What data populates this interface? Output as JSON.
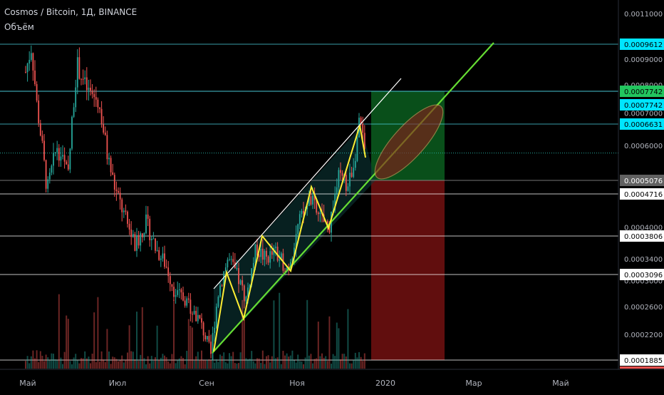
{
  "header": {
    "title": "Cosmos / Bitcoin, 1Д, BINANCE",
    "volume_label": "Объём"
  },
  "chart_data": {
    "type": "candlestick",
    "symbol": "Cosmos / Bitcoin",
    "interval": "1Д",
    "exchange": "BINANCE",
    "x_ticks": [
      "Май",
      "Июл",
      "Сен",
      "Ноя",
      "2020",
      "Мар",
      "Май"
    ],
    "y_ticks": [
      "0.0011000",
      "0.0009000",
      "0.0008000",
      "0.0007000",
      "0.0006000",
      "0.0004000",
      "0.0003400",
      "0.0003000",
      "0.0002600",
      "0.0002200"
    ],
    "y_tick_values": [
      0.0011,
      0.0009,
      0.0008,
      0.0007,
      0.0006,
      0.0004,
      0.00034,
      0.0003,
      0.00026,
      0.00022
    ],
    "horizontal_levels": [
      {
        "value": 0.0009612,
        "label": "0.0009612",
        "color": "#4dd0e1",
        "badge_bg": "#00e5ff",
        "badge_fg": "#000000"
      },
      {
        "value": 0.0007742,
        "label": "0.0007742",
        "color": "#4dd0e1",
        "badge_bg": "#22c55e",
        "badge_fg": "#000000"
      },
      {
        "value": 0.0007742,
        "label": "0.0007742",
        "color": "#4dd0e1",
        "badge_bg": "#00e5ff",
        "badge_fg": "#000000"
      },
      {
        "value": 0.0006631,
        "label": "0.0006631",
        "color": "#4dd0e1",
        "badge_bg": "#00e5ff",
        "badge_fg": "#000000"
      },
      {
        "value": 0.0005076,
        "label": "0.0005076",
        "color": "#9e9e9e",
        "badge_bg": "#616161",
        "badge_fg": "#ffffff"
      },
      {
        "value": 0.0004716,
        "label": "0.0004716",
        "color": "#ffffff",
        "badge_bg": "#ffffff",
        "badge_fg": "#000000"
      },
      {
        "value": 0.0003806,
        "label": "0.0003806",
        "color": "#ffffff",
        "badge_bg": "#ffffff",
        "badge_fg": "#000000"
      },
      {
        "value": 0.0003096,
        "label": "0.0003096",
        "color": "#ffffff",
        "badge_bg": "#ffffff",
        "badge_fg": "#000000"
      },
      {
        "value": 0.0001885,
        "label": "0.0001885",
        "color": "#ffffff",
        "badge_bg": "#ffffff",
        "badge_fg": "#000000"
      }
    ],
    "current_price": 0.00058,
    "trade_box": {
      "entry": 0.0005076,
      "target": 0.0007742,
      "stop": 0.0001885
    },
    "colors": {
      "up": "#26a69a",
      "down": "#ef5350",
      "channel": "#66dd33",
      "zigzag": "#ffee33",
      "ellipse": "#8b1a1a",
      "profit": "#0b5d1e",
      "loss": "#6b0f0f"
    },
    "grid": false,
    "legend": "top-left"
  }
}
